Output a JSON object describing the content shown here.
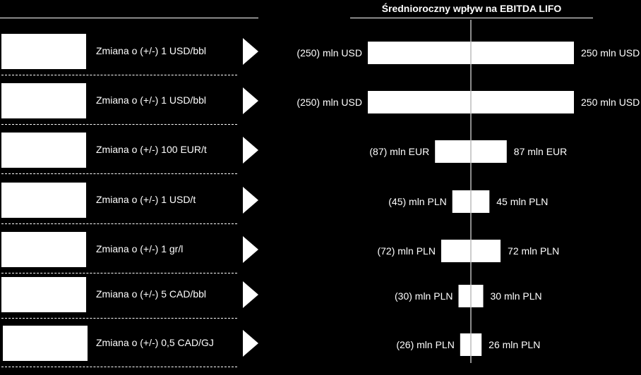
{
  "chart_data": {
    "type": "bar",
    "title": "Średnioroczny wpływ na EBITDA LIFO",
    "orientation": "horizontal-tornado",
    "categories": [
      "Zmiana o (+/-) 1 USD/bbl",
      "Zmiana o (+/-) 1 USD/bbl",
      "Zmiana o (+/-) 100 EUR/t",
      "Zmiana o (+/-) 1 USD/t",
      "Zmiana o (+/-) 1 gr/l",
      "Zmiana o (+/-) 5 CAD/bbl",
      "Zmiana o (+/-) 0,5 CAD/GJ"
    ],
    "values": [
      250,
      250,
      87,
      45,
      72,
      30,
      26
    ],
    "units": [
      "mln USD",
      "mln USD",
      "mln EUR",
      "mln PLN",
      "mln PLN",
      "mln PLN",
      "mln PLN"
    ],
    "neg_labels": [
      "(250) mln USD",
      "(250) mln USD",
      "(87) mln EUR",
      "(45) mln PLN",
      "(72) mln PLN",
      "(30) mln PLN",
      "(26) mln PLN"
    ],
    "pos_labels": [
      "250 mln USD",
      "250 mln USD",
      "87 mln EUR",
      "45 mln PLN",
      "72 mln PLN",
      "30 mln PLN",
      "26 mln PLN"
    ],
    "xlim": [
      -250,
      250
    ],
    "bar_color": "#ffffff",
    "axis_color": "#bbbbbb",
    "background": "#000000"
  }
}
